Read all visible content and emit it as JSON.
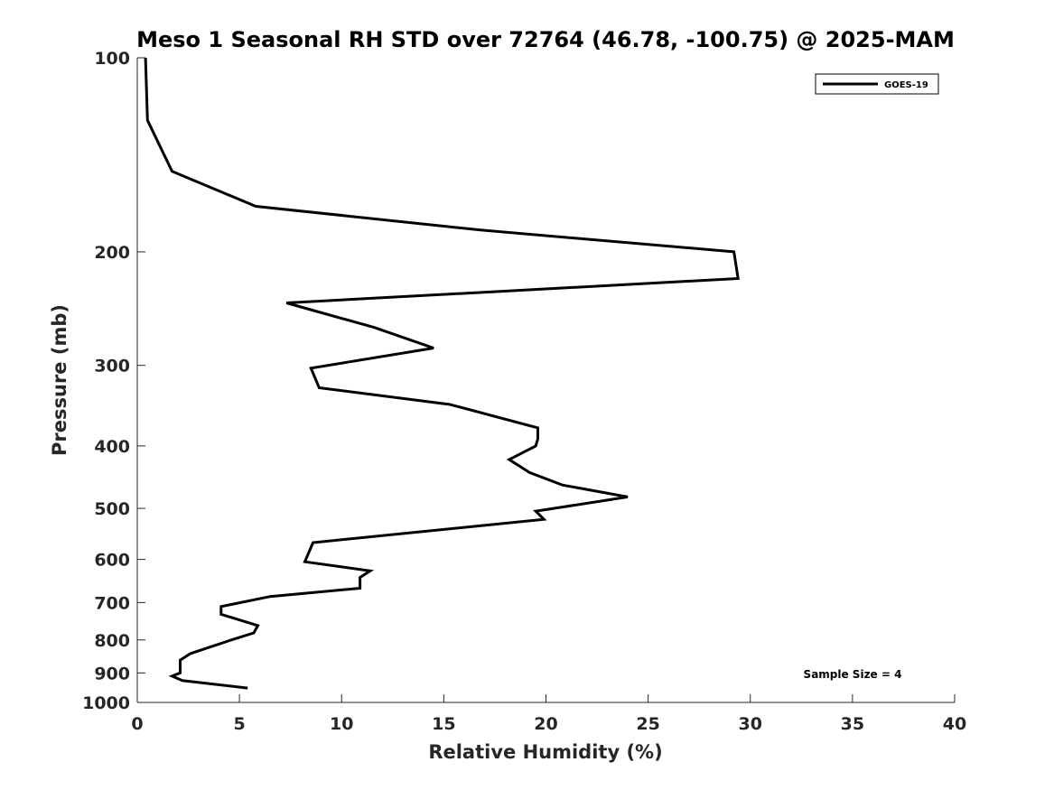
{
  "chart_data": {
    "type": "line",
    "title": "Meso 1 Seasonal RH STD over 72764 (46.78, -100.75) @ 2025-MAM",
    "xlabel": "Relative Humidity (%)",
    "ylabel": "Pressure (mb)",
    "xlim": [
      0,
      40
    ],
    "ylim": [
      100,
      1000
    ],
    "y_scale": "log",
    "y_reversed": true,
    "xticks": [
      0,
      5,
      10,
      15,
      20,
      25,
      30,
      35,
      40
    ],
    "xtick_labels": [
      "0",
      "5",
      "10",
      "15",
      "20",
      "25",
      "30",
      "35",
      "40"
    ],
    "yticks": [
      100,
      200,
      300,
      400,
      500,
      600,
      700,
      800,
      900,
      1000
    ],
    "ytick_labels": [
      "100",
      "200",
      "300",
      "400",
      "500",
      "600",
      "700",
      "800",
      "900",
      "1000"
    ],
    "grid": false,
    "legend_position": "top-right",
    "series": [
      {
        "name": "GOES-19",
        "color": "#000000",
        "x": [
          0.4,
          0.5,
          1.7,
          5.8,
          16.8,
          29.2,
          29.4,
          7.3,
          11.6,
          14.5,
          8.5,
          8.9,
          15.3,
          19.6,
          19.6,
          19.5,
          18.2,
          19.2,
          20.8,
          24.0,
          19.5,
          19.9,
          8.6,
          8.2,
          11.4,
          10.9,
          10.9,
          6.5,
          4.1,
          4.1,
          5.9,
          5.7,
          4.6,
          2.6,
          2.1,
          2.1,
          2.1,
          1.7,
          2.2,
          5.4
        ],
        "y": [
          100,
          125,
          150,
          170,
          185,
          200,
          220,
          240,
          262,
          282,
          303,
          325,
          345,
          375,
          390,
          400,
          420,
          440,
          460,
          480,
          505,
          520,
          565,
          605,
          625,
          640,
          665,
          685,
          710,
          730,
          760,
          780,
          800,
          840,
          860,
          880,
          900,
          910,
          925,
          950
        ]
      }
    ],
    "annotations": [
      "Sample Size = 4"
    ]
  }
}
